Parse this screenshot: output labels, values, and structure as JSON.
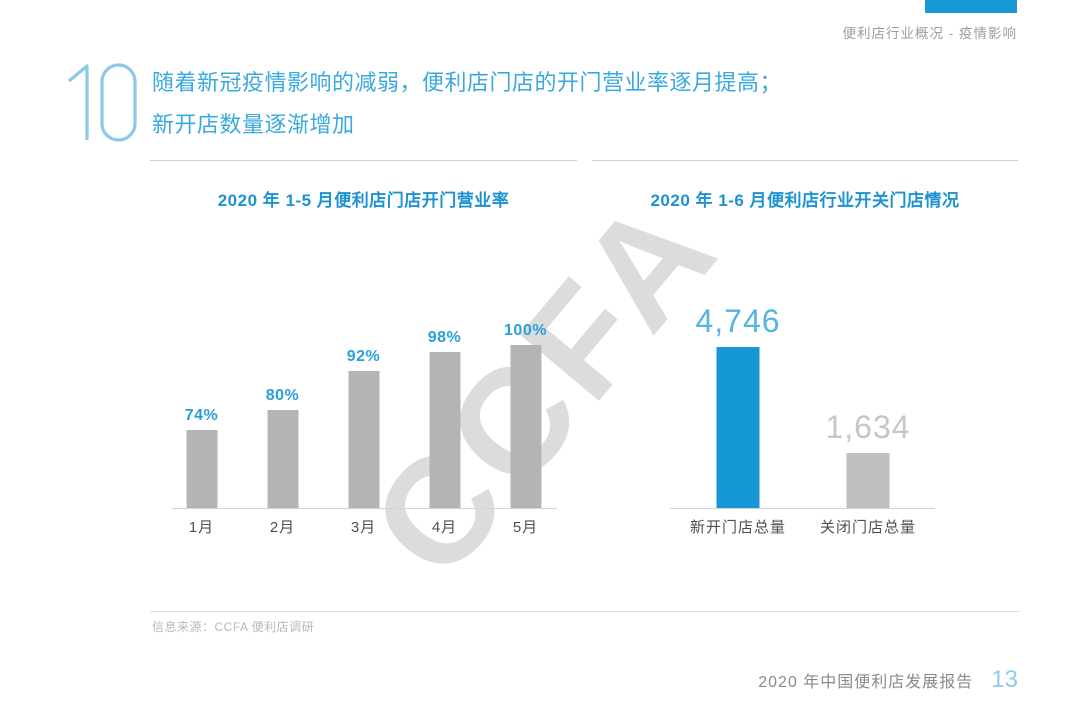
{
  "page": {
    "header": {
      "section_label": "便利店行业概况 - 疫情影响"
    },
    "slide_number": "10",
    "headline": {
      "line1": "随着新冠疫情影响的减弱，便利店门店的开门营业率逐月提高；",
      "line2": "新开店数量逐渐增加"
    },
    "watermark": "CCFA",
    "source": "信息来源：CCFA 便利店调研",
    "footer": {
      "report_title": "2020 年中国便利店发展报告",
      "page_number": "13"
    }
  },
  "colors": {
    "accent_blue": "#1899d6",
    "headline_blue": "#3aa9de",
    "chart_title_blue": "#1c93d0",
    "bar_gray": "#b4b4b4",
    "watermark_gray": "#dcdcdc",
    "page_number_blue": "#8dcbe9"
  },
  "chart_data": [
    {
      "type": "bar",
      "title": "2020 年 1-5 月便利店门店开门营业率",
      "categories": [
        "1月",
        "2月",
        "3月",
        "4月",
        "5月"
      ],
      "values": [
        74,
        80,
        92,
        98,
        100
      ],
      "labels": [
        "74%",
        "80%",
        "92%",
        "98%",
        "100%"
      ],
      "unit": "%",
      "ylim": [
        50,
        100
      ],
      "bar_color": "#b4b4b4",
      "label_color": "#2b9fd9",
      "grid": false,
      "legend": "none",
      "xlabel": "",
      "ylabel": ""
    },
    {
      "type": "bar",
      "title": "2020 年 1-6 月便利店行业开关门店情况",
      "categories": [
        "新开门店总量",
        "关闭门店总量"
      ],
      "values": [
        4746,
        1634
      ],
      "labels": [
        "4,746",
        "1,634"
      ],
      "ylim": [
        0,
        4746
      ],
      "bar_colors": [
        "#1598d5",
        "#bfbfbf"
      ],
      "label_colors": [
        "#56b4e1",
        "#c6c6c6"
      ],
      "grid": false,
      "legend": "none",
      "xlabel": "",
      "ylabel": ""
    }
  ]
}
